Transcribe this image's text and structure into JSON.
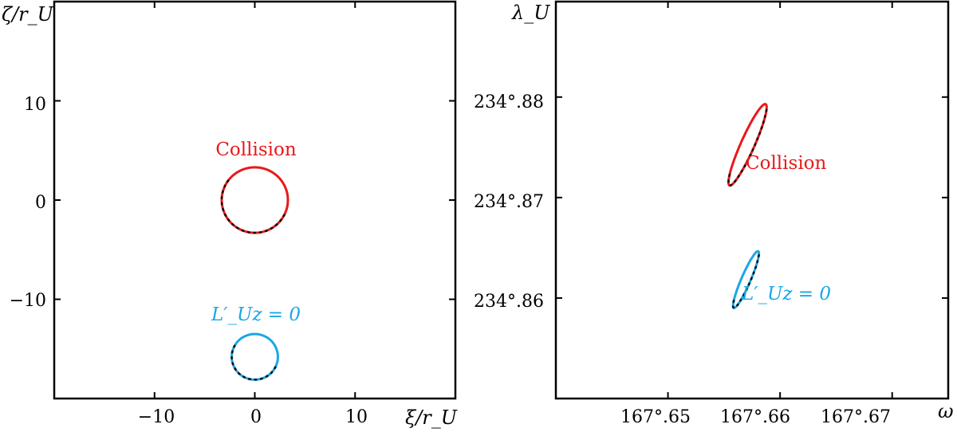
{
  "colors": {
    "collision": "#e8191b",
    "lz": "#1aa7e6",
    "dots": "#111111",
    "axes": "#000000"
  },
  "chart_data": [
    {
      "type": "line",
      "xlabel": "ξ/r_U",
      "ylabel": "ζ/r_U",
      "xlim": [
        -20,
        20
      ],
      "ylim": [
        -20,
        20
      ],
      "xticks": [
        -10,
        0,
        10
      ],
      "yticks": [
        -10,
        0,
        10
      ],
      "xtick_labels": [
        "−10",
        "0",
        "10"
      ],
      "ytick_labels": [
        "−10",
        "0",
        "10"
      ],
      "series": [
        {
          "name": "Collision",
          "center": [
            0,
            0
          ],
          "radius_x": 3.3,
          "radius_y": 3.3,
          "color": "#e8191b"
        },
        {
          "name": "L′_Uz = 0",
          "center": [
            0,
            -15.8
          ],
          "radius_x": 2.3,
          "radius_y": 2.3,
          "color": "#1aa7e6"
        }
      ],
      "annotations": [
        {
          "text": "Collision",
          "x": -0.1,
          "y": 5.2
        },
        {
          "text": "L′_Uz = 0",
          "x": -0.6,
          "y": -11.1
        }
      ]
    },
    {
      "type": "line",
      "xlabel": "ω",
      "ylabel": "λ_U",
      "xlim": [
        167.64,
        167.675
      ],
      "ylim": [
        234.85,
        234.8895
      ],
      "xticks": [
        167.65,
        167.66,
        167.67
      ],
      "yticks": [
        234.86,
        234.87,
        234.88
      ],
      "xtick_labels": [
        "167°.65",
        "167°.66",
        "167°.67"
      ],
      "ytick_labels": [
        "234°.86",
        "234°.87",
        "234°.88"
      ],
      "series": [
        {
          "name": "Collision",
          "center": [
            167.6572,
            234.8752
          ],
          "end_a": [
            167.65549,
            234.87121
          ],
          "end_b": [
            167.65871,
            234.87929
          ],
          "half_width": 0.00061,
          "color": "#e8191b"
        },
        {
          "name": "L′_Uz = 0",
          "center": [
            167.6569,
            234.862
          ],
          "end_a": [
            167.65587,
            234.85902
          ],
          "end_b": [
            167.65805,
            234.86465
          ],
          "half_width": 0.00041,
          "color": "#1aa7e6"
        }
      ],
      "annotations": [
        {
          "text": "Collision",
          "x": 167.6614,
          "y": 234.8747
        },
        {
          "text": "L′_Uz = 0",
          "x": 167.6615,
          "y": 234.8609
        }
      ]
    }
  ]
}
